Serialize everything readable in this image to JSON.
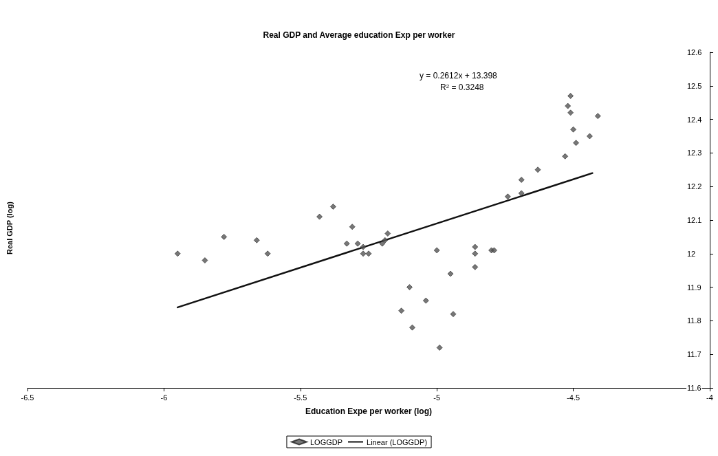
{
  "chart_data": {
    "type": "scatter",
    "title": "Real GDP and Average education Exp per worker",
    "xlabel": "Education Expe per worker (log)",
    "ylabel": "Real GDP (log)",
    "xlim": [
      -6.5,
      -4
    ],
    "xticks": [
      -6.5,
      -6,
      -5.5,
      -5,
      -4.5,
      -4
    ],
    "ylim": [
      11.6,
      12.6
    ],
    "yticks": [
      11.6,
      11.7,
      11.8,
      11.9,
      12,
      12.1,
      12.2,
      12.3,
      12.4,
      12.5,
      12.6
    ],
    "grid": false,
    "legend": "bottom",
    "annotations": [
      "y = 0.2612x + 13.398",
      "R$^{2}$ = 0.3248"
    ],
    "series": [
      {
        "name": "LOGGDP",
        "type": "scatter",
        "marker": "diamond",
        "color": "#555555",
        "x": [
          -5.95,
          -5.85,
          -5.78,
          -5.66,
          -5.62,
          -5.43,
          -5.38,
          -5.31,
          -5.33,
          -5.29,
          -5.27,
          -5.25,
          -5.27,
          -5.18,
          -5.19,
          -5.2,
          -5.0,
          -4.99,
          -5.04,
          -4.95,
          -4.94,
          -4.86,
          -4.86,
          -4.86,
          -4.8,
          -4.79,
          -4.74,
          -4.69,
          -4.69,
          -4.63,
          -4.53,
          -4.52,
          -4.51,
          -4.51,
          -4.5,
          -4.49,
          -4.44,
          -4.41,
          -5.1,
          -5.13,
          -5.09
        ],
        "values": [
          12.0,
          11.98,
          12.05,
          12.04,
          12.0,
          12.11,
          12.14,
          12.08,
          12.03,
          12.03,
          12.0,
          12.0,
          12.02,
          12.06,
          12.04,
          12.03,
          12.01,
          11.72,
          11.86,
          11.94,
          11.82,
          11.96,
          12.0,
          12.02,
          12.01,
          12.01,
          12.17,
          12.22,
          12.18,
          12.25,
          12.29,
          12.44,
          12.47,
          12.42,
          12.37,
          12.33,
          12.35,
          12.41,
          11.9,
          11.83,
          11.78
        ]
      },
      {
        "name": "Linear (LOGGDP)",
        "type": "line",
        "marker": "none",
        "color": "#111111",
        "x": [
          -5.95,
          -4.43
        ],
        "values": [
          11.84,
          12.24
        ]
      }
    ]
  }
}
